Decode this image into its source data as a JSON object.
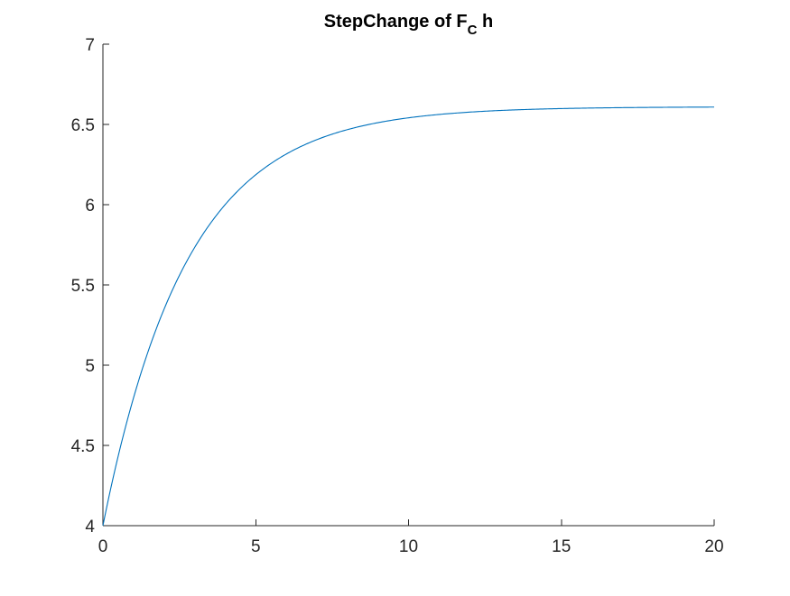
{
  "chart_data": {
    "type": "line",
    "title": "StepChange of F",
    "title_subscript": "C",
    "title_suffix": " h",
    "xlabel": "",
    "ylabel": "",
    "xlim": [
      0,
      20
    ],
    "ylim": [
      4,
      7
    ],
    "xticks": [
      0,
      5,
      10,
      15,
      20
    ],
    "xtick_labels": [
      "0",
      "5",
      "10",
      "15",
      "20"
    ],
    "yticks": [
      4,
      4.5,
      5,
      5.5,
      6,
      6.5,
      7
    ],
    "ytick_labels": [
      "4",
      "4.5",
      "5",
      "5.5",
      "6",
      "6.5",
      "7"
    ],
    "grid": false,
    "legend": "none",
    "series": [
      {
        "color": "#0072bd",
        "x": [
          0,
          0.5,
          1,
          1.5,
          2,
          2.5,
          3,
          3.5,
          4,
          4.5,
          5,
          5.5,
          6,
          6.5,
          7,
          7.5,
          8,
          8.5,
          9,
          9.5,
          10,
          11,
          12,
          13,
          14,
          15,
          16,
          17,
          18,
          19,
          20
        ],
        "y": [
          4.0,
          4.55,
          4.99,
          5.35,
          5.63,
          5.85,
          6.02,
          6.16,
          6.27,
          6.36,
          6.43,
          6.48,
          6.52,
          6.55,
          6.57,
          6.59,
          6.6,
          6.61,
          6.62,
          6.625,
          6.53,
          6.555,
          6.575,
          6.585,
          6.595,
          6.6,
          6.603,
          6.605,
          6.607,
          6.608,
          6.61
        ]
      }
    ]
  }
}
